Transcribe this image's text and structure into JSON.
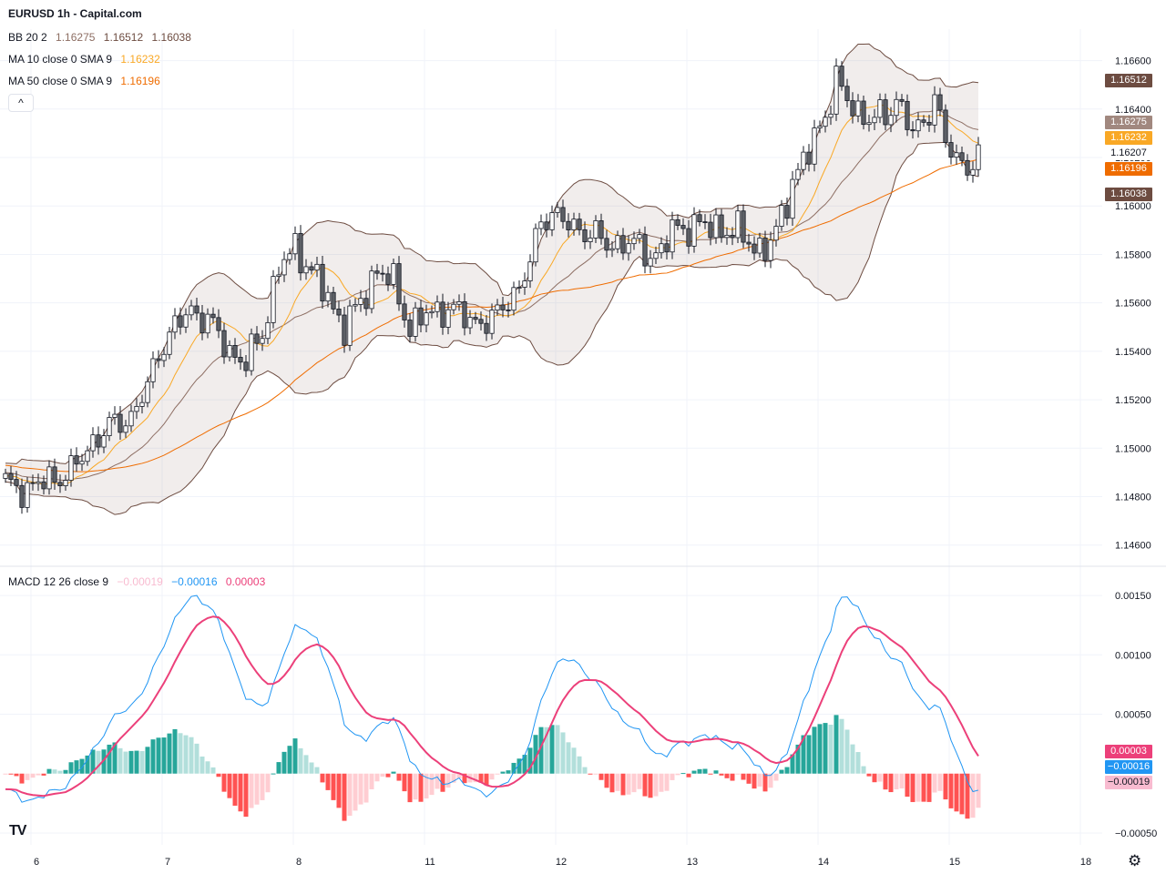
{
  "header": {
    "title": "EURUSD 1h - Capital.com",
    "bb": {
      "label": "BB 20 2",
      "v1": "1.16275",
      "v2": "1.16512",
      "v3": "1.16038"
    },
    "ma10": {
      "label": "MA 10 close 0 SMA 9",
      "value": "1.16232"
    },
    "ma50": {
      "label": "MA 50 close 0 SMA 9",
      "value": "1.16196"
    },
    "collapse_glyph": "^"
  },
  "macd_legend": {
    "label": "MACD 12 26 close 9",
    "hist": "−0.00019",
    "macd": "−0.00016",
    "signal": "0.00003"
  },
  "price_tags": [
    {
      "text": "1.16512",
      "color": "#6d4c41"
    },
    {
      "text": "1.16275",
      "color": "#a1887f"
    },
    {
      "text": "1.16232",
      "color": "#f9a825"
    },
    {
      "text": "1.16207",
      "color": "#ffffff"
    },
    {
      "text": "1.16196",
      "color": "#ef6c00"
    },
    {
      "text": "1.16038",
      "color": "#6d4c41"
    }
  ],
  "macd_tags": [
    {
      "text": "0.00003",
      "color": "#ec407a"
    },
    {
      "text": "−0.00016",
      "color": "#2196f3"
    },
    {
      "text": "−0.00019",
      "color": "#f8bbd0"
    }
  ],
  "logo": "TV",
  "gear_icon": "⚙",
  "chart_data": [
    {
      "type": "candlestick",
      "title": "EURUSD 1h - Capital.com",
      "y_ticks": [
        "1.16600",
        "1.16400",
        "1.16200",
        "1.16000",
        "1.15800",
        "1.15600",
        "1.15400",
        "1.15200",
        "1.15000",
        "1.14800",
        "1.14600"
      ],
      "y_tick_values": [
        1.166,
        1.164,
        1.162,
        1.16,
        1.158,
        1.156,
        1.154,
        1.152,
        1.15,
        1.148,
        1.146
      ],
      "ylim": [
        1.1452,
        1.1673
      ],
      "x_ticks": [
        "6",
        "7",
        "8",
        "11",
        "12",
        "13",
        "14",
        "15",
        "18"
      ],
      "x_tick_index": [
        0,
        24,
        48,
        72,
        96,
        120,
        144,
        168,
        192
      ],
      "anchors": [
        [
          0,
          1.1485
        ],
        [
          4,
          1.1483
        ],
        [
          8,
          1.1487
        ],
        [
          12,
          1.149
        ],
        [
          16,
          1.1503
        ],
        [
          20,
          1.151
        ],
        [
          23,
          1.1513
        ],
        [
          26,
          1.1525
        ],
        [
          28,
          1.154
        ],
        [
          31,
          1.155
        ],
        [
          34,
          1.1557
        ],
        [
          37,
          1.1553
        ],
        [
          41,
          1.154
        ],
        [
          44,
          1.1535
        ],
        [
          47,
          1.1548
        ],
        [
          50,
          1.1574
        ],
        [
          53,
          1.1583
        ],
        [
          56,
          1.1573
        ],
        [
          59,
          1.1562
        ],
        [
          62,
          1.155
        ],
        [
          65,
          1.156
        ],
        [
          68,
          1.1574
        ],
        [
          71,
          1.1568
        ],
        [
          74,
          1.155
        ],
        [
          77,
          1.1555
        ],
        [
          81,
          1.1558
        ],
        [
          85,
          1.1553
        ],
        [
          89,
          1.1552
        ],
        [
          92,
          1.1562
        ],
        [
          94,
          1.1566
        ],
        [
          96,
          1.1576
        ],
        [
          98,
          1.1595
        ],
        [
          100,
          1.1597
        ],
        [
          103,
          1.1592
        ],
        [
          107,
          1.1589
        ],
        [
          110,
          1.1584
        ],
        [
          114,
          1.1585
        ],
        [
          118,
          1.158
        ],
        [
          120,
          1.1581
        ],
        [
          122,
          1.159
        ],
        [
          126,
          1.1592
        ],
        [
          130,
          1.1591
        ],
        [
          134,
          1.1589
        ],
        [
          138,
          1.1582
        ],
        [
          140,
          1.1584
        ],
        [
          142,
          1.1595
        ],
        [
          144,
          1.1611
        ],
        [
          147,
          1.1622
        ],
        [
          150,
          1.1638
        ],
        [
          152,
          1.1652
        ],
        [
          154,
          1.1643
        ],
        [
          157,
          1.1637
        ],
        [
          161,
          1.1636
        ],
        [
          163,
          1.1645
        ],
        [
          166,
          1.163
        ],
        [
          168,
          1.1633
        ],
        [
          170,
          1.1647
        ],
        [
          172,
          1.1625
        ],
        [
          175,
          1.1617
        ],
        [
          177,
          1.1618
        ],
        [
          178,
          1.1621
        ]
      ],
      "series": [
        {
          "name": "Bollinger Bands (20, 2)",
          "upper": "1.16512",
          "basis": "1.16275",
          "lower": "1.16038",
          "color": "#6d4c41"
        },
        {
          "name": "MA 10 SMA",
          "value": "1.16232",
          "color": "#f9a825"
        },
        {
          "name": "MA 50 SMA",
          "value": "1.16196",
          "color": "#ef6c00"
        }
      ],
      "last_price": "1.16207"
    },
    {
      "type": "macd",
      "title": "MACD 12 26 close 9",
      "y_ticks": [
        "0.00150",
        "0.00100",
        "0.00050",
        "−0.00050"
      ],
      "y_tick_values": [
        0.0015,
        0.001,
        0.0005,
        -0.0005
      ],
      "ylim": [
        -0.0006,
        0.0017
      ],
      "histogram_last": -0.00019,
      "macd_last": -0.00016,
      "signal_last": 3e-05
    }
  ]
}
